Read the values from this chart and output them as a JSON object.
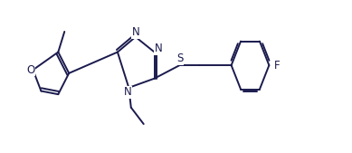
{
  "bg_color": "#ffffff",
  "line_color": "#1a1a4e",
  "font_size": 8.5,
  "line_width": 1.4,
  "figsize": [
    3.89,
    1.69
  ],
  "dpi": 100,
  "xlim": [
    0,
    7.8
  ],
  "ylim": [
    -0.7,
    1.6
  ]
}
